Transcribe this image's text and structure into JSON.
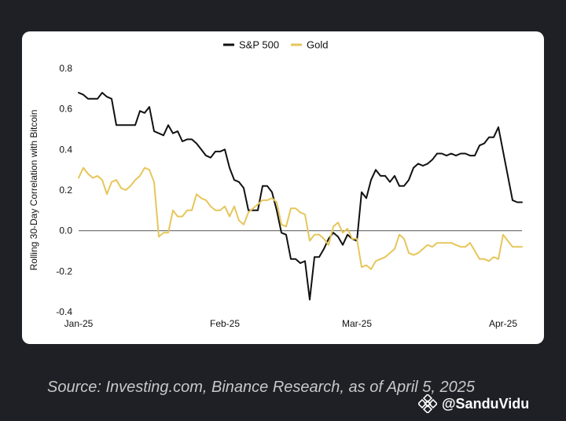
{
  "chart_data": {
    "type": "line",
    "title": "",
    "ylabel": "Rolling 30-Day Correlation with Bitcoin",
    "xlabel": "",
    "ylim": [
      -0.4,
      0.8
    ],
    "yticks": [
      "0.8",
      "0.6",
      "0.4",
      "0.2",
      "0.0",
      "-0.2",
      "-0.4"
    ],
    "xticks": [
      "Jan-25",
      "Feb-25",
      "Mar-25",
      "Apr-25"
    ],
    "xtick_days": [
      1,
      32,
      60,
      91
    ],
    "x_start": "2025-01-01",
    "legend_position": "top-center",
    "grid": false,
    "zero_line": true,
    "series": [
      {
        "name": "S&P 500",
        "color": "#111111",
        "x": [
          1,
          2,
          3,
          4,
          5,
          6,
          7,
          8,
          9,
          10,
          11,
          12,
          13,
          14,
          15,
          16,
          17,
          18,
          19,
          20,
          21,
          22,
          23,
          24,
          25,
          26,
          27,
          28,
          29,
          30,
          31,
          32,
          33,
          34,
          35,
          36,
          37,
          38,
          39,
          40,
          41,
          42,
          43,
          44,
          45,
          46,
          47,
          48,
          49,
          50,
          51,
          52,
          53,
          54,
          55,
          56,
          57,
          58,
          59,
          60,
          61,
          62,
          63,
          64,
          65,
          66,
          67,
          68,
          69,
          70,
          71,
          72,
          73,
          74,
          75,
          76,
          77,
          78,
          79,
          80,
          81,
          82,
          83,
          84,
          85,
          86,
          87,
          88,
          89,
          90,
          91,
          92,
          93,
          94,
          95
        ],
        "values": [
          0.68,
          0.67,
          0.65,
          0.65,
          0.65,
          0.68,
          0.66,
          0.65,
          0.52,
          0.52,
          0.52,
          0.52,
          0.52,
          0.59,
          0.58,
          0.61,
          0.49,
          0.48,
          0.47,
          0.52,
          0.48,
          0.49,
          0.44,
          0.45,
          0.45,
          0.43,
          0.4,
          0.37,
          0.36,
          0.39,
          0.39,
          0.4,
          0.31,
          0.25,
          0.24,
          0.21,
          0.1,
          0.1,
          0.1,
          0.22,
          0.22,
          0.19,
          0.1,
          -0.01,
          -0.02,
          -0.14,
          -0.14,
          -0.16,
          -0.15,
          -0.34,
          -0.13,
          -0.13,
          -0.09,
          -0.04,
          -0.01,
          -0.03,
          -0.07,
          -0.02,
          -0.04,
          -0.05,
          0.19,
          0.16,
          0.25,
          0.3,
          0.27,
          0.27,
          0.24,
          0.27,
          0.22,
          0.22,
          0.25,
          0.31,
          0.33,
          0.32,
          0.33,
          0.35,
          0.38,
          0.38,
          0.37,
          0.38,
          0.37,
          0.38,
          0.38,
          0.37,
          0.37,
          0.42,
          0.43,
          0.46,
          0.46,
          0.51,
          0.39,
          0.27,
          0.15,
          0.14,
          0.14
        ],
        "x_end": 95
      },
      {
        "name": "Gold",
        "color": "#e6c65a",
        "x": [
          1,
          2,
          3,
          4,
          5,
          6,
          7,
          8,
          9,
          10,
          11,
          12,
          13,
          14,
          15,
          16,
          17,
          18,
          19,
          20,
          21,
          22,
          23,
          24,
          25,
          26,
          27,
          28,
          29,
          30,
          31,
          32,
          33,
          34,
          35,
          36,
          37,
          38,
          39,
          40,
          41,
          42,
          43,
          44,
          45,
          46,
          47,
          48,
          49,
          50,
          51,
          52,
          53,
          54,
          55,
          56,
          57,
          58,
          59,
          60,
          61,
          62,
          63,
          64,
          65,
          66,
          67,
          68,
          69,
          70,
          71,
          72,
          73,
          74,
          75,
          76,
          77,
          78,
          79,
          80,
          81,
          82,
          83,
          84,
          85,
          86,
          87,
          88,
          89,
          90,
          91,
          92,
          93,
          94,
          95
        ],
        "values": [
          0.26,
          0.31,
          0.28,
          0.26,
          0.27,
          0.25,
          0.18,
          0.24,
          0.25,
          0.21,
          0.2,
          0.22,
          0.25,
          0.27,
          0.31,
          0.3,
          0.24,
          -0.03,
          -0.01,
          -0.01,
          0.1,
          0.07,
          0.07,
          0.1,
          0.1,
          0.18,
          0.16,
          0.15,
          0.12,
          0.1,
          0.1,
          0.12,
          0.07,
          0.12,
          0.05,
          0.03,
          0.09,
          0.11,
          0.13,
          0.15,
          0.15,
          0.16,
          0.14,
          0.03,
          0.02,
          0.11,
          0.11,
          0.09,
          0.08,
          -0.05,
          -0.02,
          -0.02,
          -0.04,
          -0.07,
          0.02,
          0.04,
          -0.01,
          0.01,
          -0.04,
          -0.04,
          -0.18,
          -0.17,
          -0.19,
          -0.15,
          -0.14,
          -0.13,
          -0.11,
          -0.09,
          -0.02,
          -0.04,
          -0.11,
          -0.12,
          -0.11,
          -0.09,
          -0.07,
          -0.08,
          -0.06,
          -0.06,
          -0.06,
          -0.06,
          -0.07,
          -0.08,
          -0.08,
          -0.06,
          -0.1,
          -0.14,
          -0.14,
          -0.15,
          -0.13,
          -0.14,
          -0.02,
          -0.05,
          -0.08,
          -0.08,
          -0.08
        ]
      }
    ]
  },
  "source_text": "Source: Investing.com, Binance Research, as of April 5, 2025",
  "watermark": {
    "handle": "@SanduVidu",
    "icon": "binance-diamond-icon"
  }
}
